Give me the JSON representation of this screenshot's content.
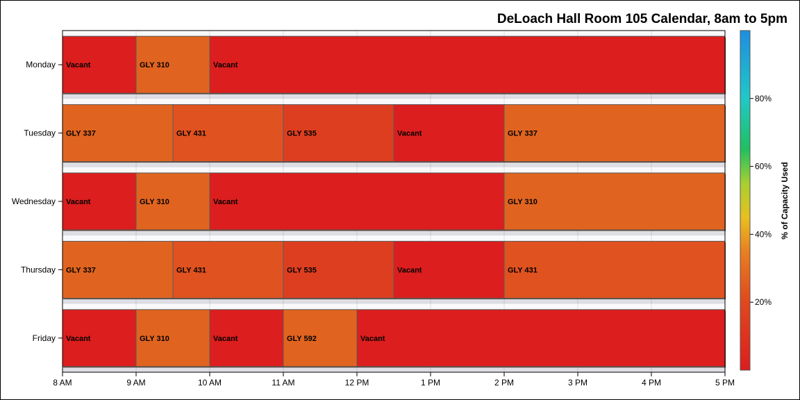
{
  "chart_data": {
    "type": "bar",
    "orientation": "horizontal",
    "title": "DeLoach Hall Room 105 Calendar, 8am to 5pm",
    "x_range": [
      8,
      17
    ],
    "x_ticks": [
      {
        "value": 8,
        "label": "8 AM"
      },
      {
        "value": 9,
        "label": "9 AM"
      },
      {
        "value": 10,
        "label": "10 AM"
      },
      {
        "value": 11,
        "label": "11 AM"
      },
      {
        "value": 12,
        "label": "12 PM"
      },
      {
        "value": 13,
        "label": "1 PM"
      },
      {
        "value": 14,
        "label": "2 PM"
      },
      {
        "value": 15,
        "label": "3 PM"
      },
      {
        "value": 16,
        "label": "4 PM"
      },
      {
        "value": 17,
        "label": "5 PM"
      }
    ],
    "categories": [
      "Monday",
      "Tuesday",
      "Wednesday",
      "Thursday",
      "Friday"
    ],
    "grid": true,
    "colorbar": {
      "title": "% of Capacity Used",
      "range": [
        0,
        100
      ],
      "ticks": [
        {
          "value": 20,
          "label": "20%"
        },
        {
          "value": 40,
          "label": "40%"
        },
        {
          "value": 60,
          "label": "60%"
        },
        {
          "value": 80,
          "label": "80%"
        }
      ],
      "stops": [
        {
          "offset": 0,
          "color": "#dc1e1e"
        },
        {
          "offset": 0.2,
          "color": "#e0481e"
        },
        {
          "offset": 0.35,
          "color": "#e88020"
        },
        {
          "offset": 0.45,
          "color": "#e8c020"
        },
        {
          "offset": 0.55,
          "color": "#a8d030"
        },
        {
          "offset": 0.65,
          "color": "#20c060"
        },
        {
          "offset": 0.8,
          "color": "#20c8c8"
        },
        {
          "offset": 1,
          "color": "#1e8ee0"
        }
      ]
    },
    "rows": [
      {
        "day": "Monday",
        "segments": [
          {
            "start": 8,
            "end": 9,
            "label": "Vacant",
            "color": "#dc1e1e"
          },
          {
            "start": 9,
            "end": 10,
            "label": "GLY 310",
            "color": "#e06420"
          },
          {
            "start": 10,
            "end": 17,
            "label": "Vacant",
            "color": "#dc1e1e"
          }
        ]
      },
      {
        "day": "Tuesday",
        "segments": [
          {
            "start": 8,
            "end": 9.5,
            "label": "GLY 337",
            "color": "#e06420"
          },
          {
            "start": 9.5,
            "end": 11,
            "label": "GLY 431",
            "color": "#e05220"
          },
          {
            "start": 11,
            "end": 12.5,
            "label": "GLY 535",
            "color": "#de3e20"
          },
          {
            "start": 12.5,
            "end": 14,
            "label": "Vacant",
            "color": "#dc1e1e"
          },
          {
            "start": 14,
            "end": 17,
            "label": "GLY 337",
            "color": "#e06420"
          }
        ]
      },
      {
        "day": "Wednesday",
        "segments": [
          {
            "start": 8,
            "end": 9,
            "label": "Vacant",
            "color": "#dc1e1e"
          },
          {
            "start": 9,
            "end": 10,
            "label": "GLY 310",
            "color": "#e06420"
          },
          {
            "start": 10,
            "end": 14,
            "label": "Vacant",
            "color": "#dc1e1e"
          },
          {
            "start": 14,
            "end": 17,
            "label": "GLY 310",
            "color": "#e06420"
          }
        ]
      },
      {
        "day": "Thursday",
        "segments": [
          {
            "start": 8,
            "end": 9.5,
            "label": "GLY 337",
            "color": "#e06420"
          },
          {
            "start": 9.5,
            "end": 11,
            "label": "GLY 431",
            "color": "#e05220"
          },
          {
            "start": 11,
            "end": 12.5,
            "label": "GLY 535",
            "color": "#de3e20"
          },
          {
            "start": 12.5,
            "end": 14,
            "label": "Vacant",
            "color": "#dc1e1e"
          },
          {
            "start": 14,
            "end": 17,
            "label": "GLY 431",
            "color": "#e05220"
          }
        ]
      },
      {
        "day": "Friday",
        "segments": [
          {
            "start": 8,
            "end": 9,
            "label": "Vacant",
            "color": "#dc1e1e"
          },
          {
            "start": 9,
            "end": 10,
            "label": "GLY 310",
            "color": "#e06420"
          },
          {
            "start": 10,
            "end": 11,
            "label": "Vacant",
            "color": "#dc1e1e"
          },
          {
            "start": 11,
            "end": 12,
            "label": "GLY 592",
            "color": "#e06420"
          },
          {
            "start": 12,
            "end": 17,
            "label": "Vacant",
            "color": "#dc1e1e"
          }
        ]
      }
    ]
  }
}
